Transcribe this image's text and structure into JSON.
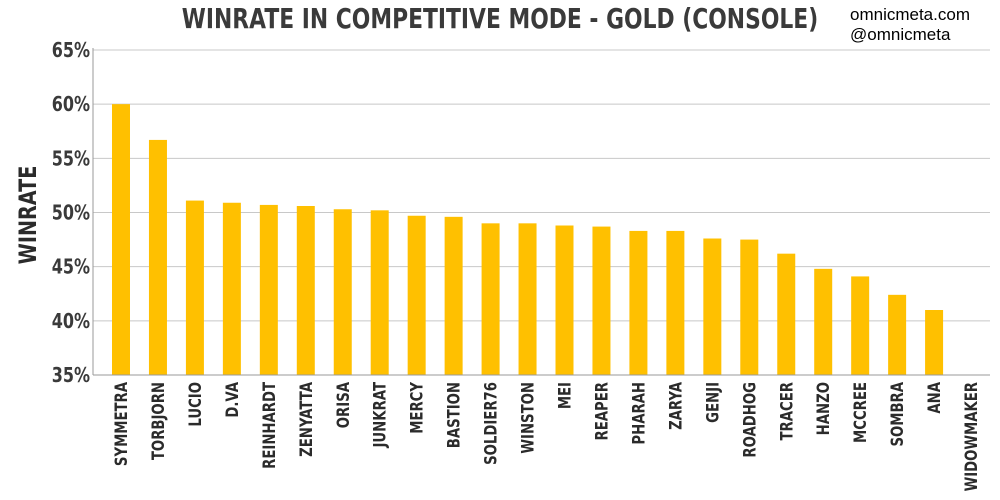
{
  "watermark": {
    "line1": "omnicmeta.com",
    "line2": "@omnicmeta"
  },
  "chart_data": {
    "type": "bar",
    "title": "WINRATE IN COMPETITIVE MODE - GOLD (CONSOLE)",
    "xlabel": "",
    "ylabel": "WINRATE",
    "ylim": [
      35,
      65
    ],
    "yticks": [
      "35%",
      "40%",
      "45%",
      "50%",
      "55%",
      "60%",
      "65%"
    ],
    "grid": true,
    "bar_color": "#FFC000",
    "categories": [
      "SYMMETRA",
      "TORBJORN",
      "LUCIO",
      "D.VA",
      "REINHARDT",
      "ZENYATTA",
      "ORISA",
      "JUNKRAT",
      "MERCY",
      "BASTION",
      "SOLDIER76",
      "WINSTON",
      "MEI",
      "REAPER",
      "PHARAH",
      "ZARYA",
      "GENJI",
      "ROADHOG",
      "TRACER",
      "HANZO",
      "MCCREE",
      "SOMBRA",
      "ANA",
      "WIDOWMAKER"
    ],
    "values": [
      60.0,
      56.7,
      51.1,
      50.9,
      50.7,
      50.6,
      50.3,
      50.2,
      49.7,
      49.6,
      49.0,
      49.0,
      48.8,
      48.7,
      48.3,
      48.3,
      47.6,
      47.5,
      46.2,
      44.8,
      44.1,
      42.4,
      41.0,
      35.0
    ]
  }
}
